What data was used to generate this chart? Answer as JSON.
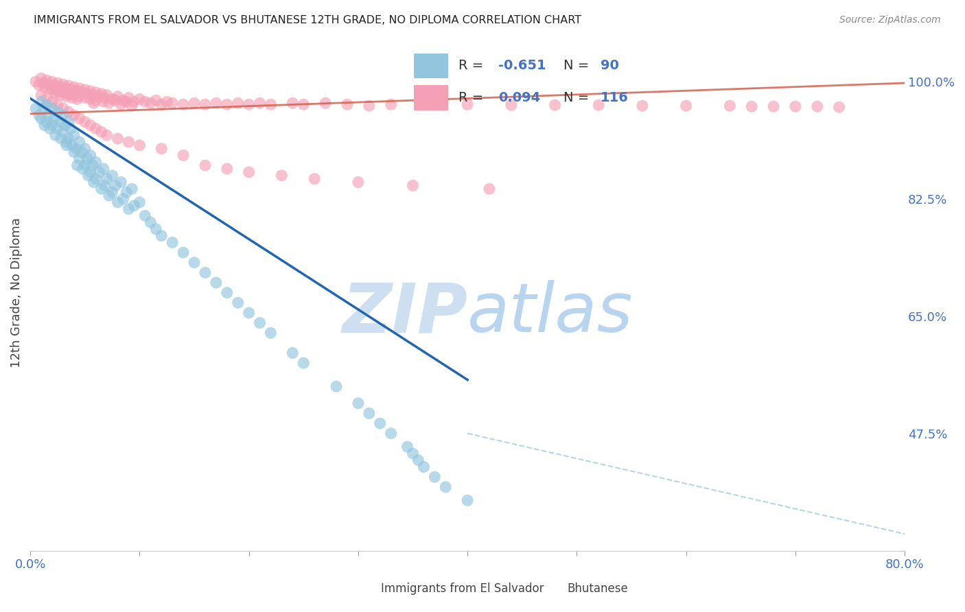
{
  "title": "IMMIGRANTS FROM EL SALVADOR VS BHUTANESE 12TH GRADE, NO DIPLOMA CORRELATION CHART",
  "source": "Source: ZipAtlas.com",
  "ylabel": "12th Grade, No Diploma",
  "ytick_labels": [
    "100.0%",
    "82.5%",
    "65.0%",
    "47.5%"
  ],
  "ytick_values": [
    1.0,
    0.825,
    0.65,
    0.475
  ],
  "xlim": [
    0.0,
    0.8
  ],
  "ylim": [
    0.3,
    1.07
  ],
  "legend_r1": "-0.651",
  "legend_n1": "90",
  "legend_r2": "0.094",
  "legend_n2": "116",
  "color_blue": "#92c5de",
  "color_pink": "#f4a0b5",
  "color_blue_line": "#2166ac",
  "color_pink_line": "#d6604d",
  "color_dashed": "#92c5de",
  "watermark_zip": "ZIP",
  "watermark_atlas": "atlas",
  "watermark_color": "#cfe0f0",
  "background_color": "#ffffff",
  "grid_color": "#d0d0d0",
  "blue_scatter_x": [
    0.005,
    0.008,
    0.01,
    0.01,
    0.012,
    0.013,
    0.015,
    0.015,
    0.017,
    0.018,
    0.02,
    0.02,
    0.022,
    0.023,
    0.025,
    0.025,
    0.027,
    0.028,
    0.03,
    0.03,
    0.032,
    0.033,
    0.033,
    0.035,
    0.035,
    0.037,
    0.038,
    0.04,
    0.04,
    0.042,
    0.043,
    0.045,
    0.045,
    0.047,
    0.048,
    0.05,
    0.05,
    0.052,
    0.053,
    0.055,
    0.055,
    0.057,
    0.058,
    0.06,
    0.06,
    0.063,
    0.065,
    0.067,
    0.068,
    0.07,
    0.072,
    0.075,
    0.075,
    0.078,
    0.08,
    0.083,
    0.085,
    0.088,
    0.09,
    0.093,
    0.095,
    0.1,
    0.105,
    0.11,
    0.115,
    0.12,
    0.13,
    0.14,
    0.15,
    0.16,
    0.17,
    0.18,
    0.19,
    0.2,
    0.21,
    0.22,
    0.24,
    0.25,
    0.28,
    0.3,
    0.31,
    0.32,
    0.33,
    0.345,
    0.35,
    0.355,
    0.36,
    0.37,
    0.38,
    0.4
  ],
  "blue_scatter_y": [
    0.96,
    0.95,
    0.97,
    0.945,
    0.96,
    0.935,
    0.965,
    0.94,
    0.95,
    0.93,
    0.96,
    0.935,
    0.945,
    0.92,
    0.955,
    0.93,
    0.94,
    0.915,
    0.95,
    0.925,
    0.935,
    0.91,
    0.905,
    0.94,
    0.915,
    0.93,
    0.905,
    0.92,
    0.895,
    0.9,
    0.875,
    0.91,
    0.885,
    0.895,
    0.87,
    0.9,
    0.875,
    0.885,
    0.86,
    0.89,
    0.865,
    0.875,
    0.85,
    0.88,
    0.855,
    0.865,
    0.84,
    0.87,
    0.845,
    0.855,
    0.83,
    0.86,
    0.835,
    0.845,
    0.82,
    0.85,
    0.825,
    0.835,
    0.81,
    0.84,
    0.815,
    0.82,
    0.8,
    0.79,
    0.78,
    0.77,
    0.76,
    0.745,
    0.73,
    0.715,
    0.7,
    0.685,
    0.67,
    0.655,
    0.64,
    0.625,
    0.595,
    0.58,
    0.545,
    0.52,
    0.505,
    0.49,
    0.475,
    0.455,
    0.445,
    0.435,
    0.425,
    0.41,
    0.395,
    0.375
  ],
  "pink_scatter_x": [
    0.005,
    0.008,
    0.01,
    0.012,
    0.013,
    0.015,
    0.017,
    0.018,
    0.02,
    0.02,
    0.022,
    0.023,
    0.025,
    0.025,
    0.027,
    0.028,
    0.03,
    0.03,
    0.032,
    0.033,
    0.035,
    0.035,
    0.037,
    0.038,
    0.04,
    0.04,
    0.042,
    0.043,
    0.045,
    0.045,
    0.047,
    0.05,
    0.05,
    0.052,
    0.055,
    0.055,
    0.057,
    0.058,
    0.06,
    0.06,
    0.063,
    0.065,
    0.067,
    0.068,
    0.07,
    0.072,
    0.075,
    0.078,
    0.08,
    0.083,
    0.085,
    0.088,
    0.09,
    0.093,
    0.095,
    0.1,
    0.105,
    0.11,
    0.115,
    0.12,
    0.125,
    0.13,
    0.14,
    0.15,
    0.16,
    0.17,
    0.18,
    0.19,
    0.2,
    0.21,
    0.22,
    0.24,
    0.25,
    0.27,
    0.29,
    0.31,
    0.33,
    0.36,
    0.4,
    0.44,
    0.48,
    0.52,
    0.56,
    0.6,
    0.64,
    0.66,
    0.68,
    0.7,
    0.72,
    0.74,
    0.01,
    0.015,
    0.02,
    0.025,
    0.03,
    0.035,
    0.04,
    0.045,
    0.05,
    0.055,
    0.06,
    0.065,
    0.07,
    0.08,
    0.09,
    0.1,
    0.12,
    0.14,
    0.16,
    0.18,
    0.2,
    0.23,
    0.26,
    0.3,
    0.35,
    0.42
  ],
  "pink_scatter_y": [
    1.0,
    0.995,
    1.005,
    0.998,
    0.992,
    1.002,
    0.996,
    0.99,
    1.0,
    0.988,
    0.994,
    0.982,
    0.998,
    0.986,
    0.992,
    0.98,
    0.996,
    0.984,
    0.99,
    0.978,
    0.994,
    0.982,
    0.988,
    0.976,
    0.992,
    0.98,
    0.986,
    0.974,
    0.99,
    0.978,
    0.984,
    0.988,
    0.976,
    0.982,
    0.986,
    0.974,
    0.98,
    0.968,
    0.984,
    0.972,
    0.978,
    0.982,
    0.97,
    0.976,
    0.98,
    0.968,
    0.974,
    0.972,
    0.978,
    0.966,
    0.972,
    0.97,
    0.976,
    0.964,
    0.97,
    0.974,
    0.97,
    0.968,
    0.972,
    0.966,
    0.97,
    0.968,
    0.966,
    0.968,
    0.966,
    0.968,
    0.966,
    0.968,
    0.966,
    0.968,
    0.966,
    0.968,
    0.966,
    0.968,
    0.966,
    0.964,
    0.966,
    0.966,
    0.966,
    0.965,
    0.965,
    0.965,
    0.964,
    0.964,
    0.964,
    0.963,
    0.963,
    0.963,
    0.963,
    0.962,
    0.98,
    0.975,
    0.97,
    0.965,
    0.96,
    0.955,
    0.95,
    0.945,
    0.94,
    0.935,
    0.93,
    0.925,
    0.92,
    0.915,
    0.91,
    0.905,
    0.9,
    0.89,
    0.875,
    0.87,
    0.865,
    0.86,
    0.855,
    0.85,
    0.845,
    0.84
  ],
  "blue_line_x": [
    0.0,
    0.4
  ],
  "blue_line_y": [
    0.975,
    0.555
  ],
  "pink_line_x": [
    0.0,
    0.8
  ],
  "pink_line_y": [
    0.952,
    0.998
  ],
  "dashed_line_x": [
    0.4,
    0.8
  ],
  "dashed_line_y": [
    0.475,
    0.325
  ]
}
